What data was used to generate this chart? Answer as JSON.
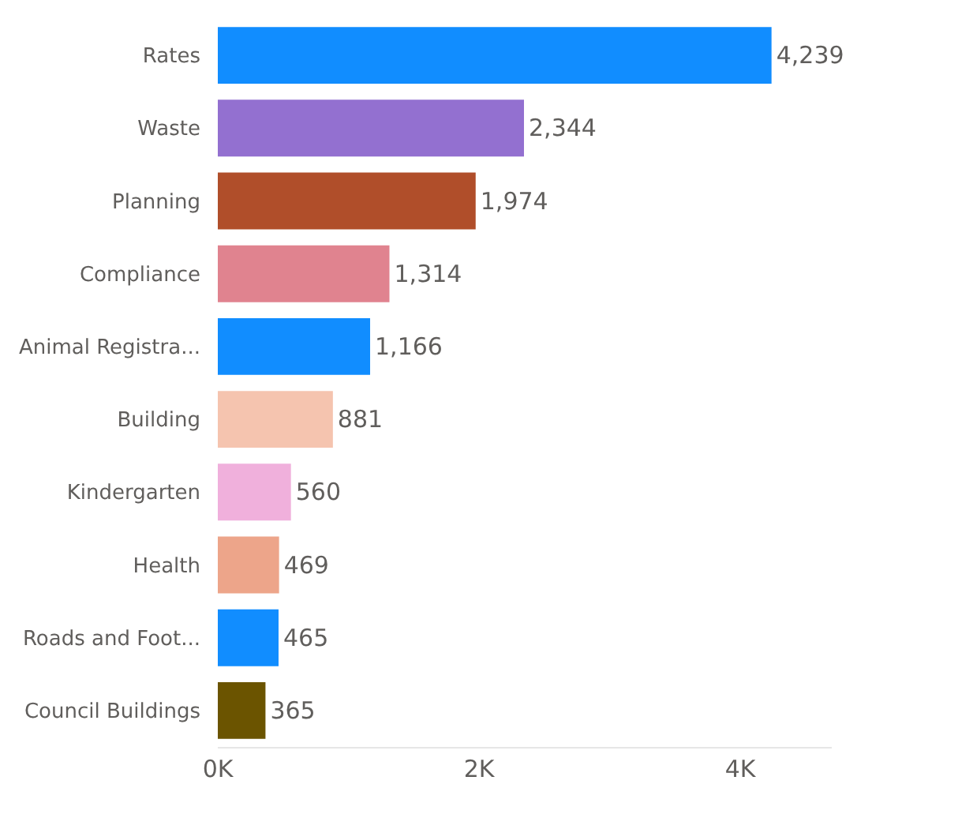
{
  "chart_data": {
    "type": "bar",
    "orientation": "horizontal",
    "categories": [
      "Rates",
      "Waste",
      "Planning",
      "Compliance",
      "Animal Registra...",
      "Building",
      "Kindergarten",
      "Health",
      "Roads and Foot...",
      "Council Buildings"
    ],
    "values": [
      4239,
      2344,
      1974,
      1314,
      1166,
      881,
      560,
      469,
      465,
      365
    ],
    "colors": [
      "#118dff",
      "#9370d0",
      "#b04e2a",
      "#e0838f",
      "#118dff",
      "#f5c4af",
      "#f0b0dc",
      "#eda58a",
      "#118dff",
      "#6b5400"
    ],
    "value_labels": [
      "4,239",
      "2,344",
      "1,974",
      "1,314",
      "1,166",
      "881",
      "560",
      "469",
      "465",
      "365"
    ],
    "xlim": [
      0,
      4700
    ],
    "xticks": [
      {
        "value": 0,
        "label": "0K"
      },
      {
        "value": 2000,
        "label": "2K"
      },
      {
        "value": 4000,
        "label": "4K"
      }
    ],
    "grid": false,
    "legend": false
  }
}
